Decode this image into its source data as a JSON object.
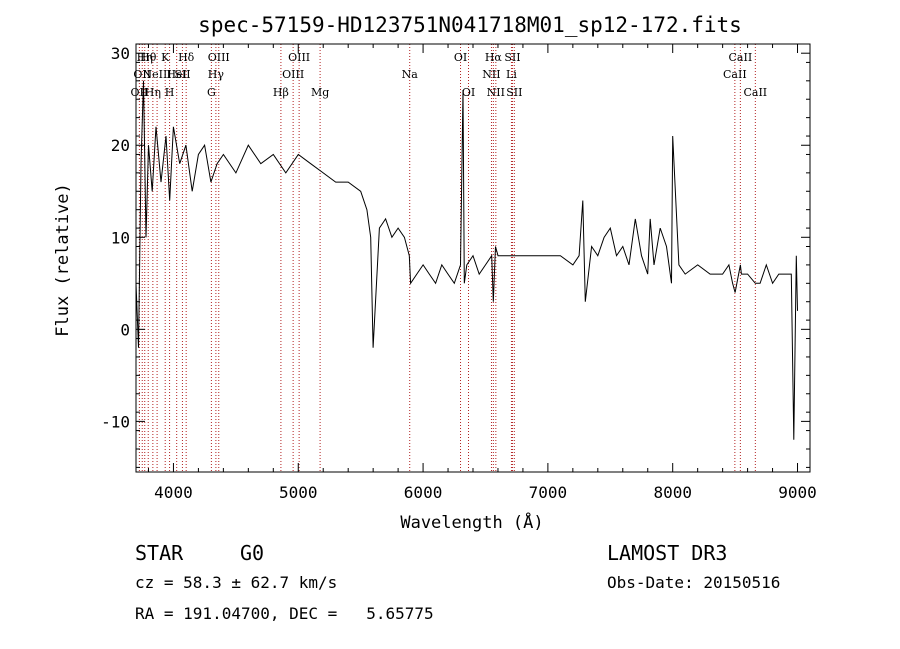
{
  "chart_data": {
    "type": "line",
    "title": "spec-57159-HD123751N041718M01_sp12-172.fits",
    "xlabel": "Wavelength (Å)",
    "ylabel": "Flux (relative)",
    "xlim": [
      3700,
      9100
    ],
    "ylim": [
      -15.5,
      31.0
    ],
    "x_ticks": [
      4000,
      5000,
      6000,
      7000,
      8000,
      9000
    ],
    "y_ticks": [
      -10,
      0,
      10,
      20,
      30
    ],
    "grid": false,
    "series": [
      {
        "x": [
          3700,
          3720,
          3740,
          3760,
          3780,
          3800,
          3830,
          3860,
          3900,
          3940,
          3970,
          4000,
          4050,
          4100,
          4150,
          4200,
          4250,
          4300,
          4350,
          4400,
          4500,
          4600,
          4700,
          4800,
          4900,
          5000,
          5100,
          5200,
          5300,
          5400,
          5500,
          5550,
          5580,
          5600,
          5650,
          5700,
          5750,
          5800,
          5850,
          5890,
          5900,
          5950,
          6000,
          6050,
          6100,
          6150,
          6200,
          6250,
          6300,
          6320,
          6330,
          6350,
          6400,
          6450,
          6500,
          6550,
          6563,
          6580,
          6600,
          6650,
          6700,
          6750,
          6800,
          6900,
          7000,
          7100,
          7200,
          7250,
          7280,
          7300,
          7350,
          7400,
          7450,
          7500,
          7550,
          7600,
          7650,
          7700,
          7750,
          7800,
          7820,
          7850,
          7900,
          7950,
          7990,
          8000,
          8050,
          8100,
          8200,
          8300,
          8400,
          8450,
          8480,
          8500,
          8542,
          8550,
          8600,
          8662,
          8700,
          8750,
          8800,
          8850,
          8900,
          8950,
          8970,
          8990,
          9000
        ],
        "y": [
          5,
          -2,
          18,
          27,
          10,
          20,
          15,
          22,
          16,
          21,
          14,
          22,
          18,
          20,
          15,
          19,
          20,
          16,
          18,
          19,
          17,
          20,
          18,
          19,
          17,
          19,
          18,
          17,
          16,
          16,
          15,
          13,
          10,
          -2,
          11,
          12,
          10,
          11,
          10,
          8,
          5,
          6,
          7,
          6,
          5,
          7,
          6,
          5,
          7,
          26,
          5,
          7,
          8,
          6,
          7,
          8,
          3,
          9,
          8,
          8,
          8,
          8,
          8,
          8,
          8,
          8,
          7,
          8,
          14,
          3,
          9,
          8,
          10,
          11,
          8,
          9,
          7,
          12,
          8,
          6,
          12,
          7,
          11,
          9,
          5,
          21,
          7,
          6,
          7,
          6,
          6,
          7,
          5,
          4,
          7,
          6,
          6,
          5,
          5,
          7,
          5,
          6,
          6,
          6,
          -12,
          8,
          2
        ]
      }
    ],
    "line_markers": [
      {
        "wl": 3727,
        "label": "OII",
        "row": 2
      },
      {
        "wl": 3750,
        "label": "OII",
        "row": 1
      },
      {
        "wl": 3770,
        "label": "Hη",
        "row": 0
      },
      {
        "wl": 3798,
        "label": "Hθ",
        "row": 0
      },
      {
        "wl": 3835,
        "label": "Hη",
        "row": 2
      },
      {
        "wl": 3869,
        "label": "NeIII",
        "row": 1
      },
      {
        "wl": 3934,
        "label": "K",
        "row": 0
      },
      {
        "wl": 3969,
        "label": "H",
        "row": 2
      },
      {
        "wl": 4026,
        "label": "HeI",
        "row": 1
      },
      {
        "wl": 4072,
        "label": "SII",
        "row": 1
      },
      {
        "wl": 4102,
        "label": "Hδ",
        "row": 0
      },
      {
        "wl": 4304,
        "label": "G",
        "row": 2
      },
      {
        "wl": 4340,
        "label": "Hγ",
        "row": 1
      },
      {
        "wl": 4363,
        "label": "OIII",
        "row": 0
      },
      {
        "wl": 4861,
        "label": "Hβ",
        "row": 2
      },
      {
        "wl": 4959,
        "label": "OIII",
        "row": 1
      },
      {
        "wl": 5007,
        "label": "OIII",
        "row": 0
      },
      {
        "wl": 5175,
        "label": "Mg",
        "row": 2
      },
      {
        "wl": 5893,
        "label": "Na",
        "row": 1
      },
      {
        "wl": 6300,
        "label": "OI",
        "row": 0
      },
      {
        "wl": 6364,
        "label": "OI",
        "row": 2
      },
      {
        "wl": 6548,
        "label": "NII",
        "row": 1
      },
      {
        "wl": 6563,
        "label": "Hα",
        "row": 0
      },
      {
        "wl": 6583,
        "label": "NII",
        "row": 2
      },
      {
        "wl": 6708,
        "label": "Li",
        "row": 1
      },
      {
        "wl": 6716,
        "label": "SII",
        "row": 0
      },
      {
        "wl": 6731,
        "label": "SII",
        "row": 2
      },
      {
        "wl": 8498,
        "label": "CaII",
        "row": 1
      },
      {
        "wl": 8542,
        "label": "CaII",
        "row": 0
      },
      {
        "wl": 8662,
        "label": "CaII",
        "row": 2
      }
    ]
  },
  "info": {
    "object_class": "STAR",
    "subclass": "G0",
    "survey": "LAMOST DR3",
    "cz_line": "cz = 58.3 ± 62.7 km/s",
    "obs_date": "Obs-Date: 20150516",
    "coords": "RA = 191.04700, DEC =   5.65775"
  },
  "colors": {
    "spectrum": "#000000",
    "line_marker": "#b22222",
    "axes": "#000000",
    "background": "#ffffff"
  }
}
